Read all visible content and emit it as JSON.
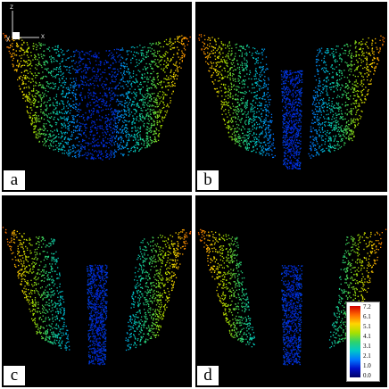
{
  "panels": [
    {
      "id": "a",
      "label": "a"
    },
    {
      "id": "b",
      "label": "b"
    },
    {
      "id": "c",
      "label": "c"
    },
    {
      "id": "d",
      "label": "d"
    }
  ],
  "axes_indicator": {
    "z_label": "z",
    "x_label": "x",
    "y_label": "y"
  },
  "colorbar": {
    "ticks": [
      "7.2",
      "6.1",
      "5.1",
      "4.1",
      "3.1",
      "2.1",
      "1.0",
      "0.0"
    ],
    "colors": [
      "#d40000",
      "#ff6a00",
      "#ffd500",
      "#a8e000",
      "#2fd36b",
      "#00c8c8",
      "#0078ff",
      "#0011cc",
      "#000066"
    ]
  }
}
